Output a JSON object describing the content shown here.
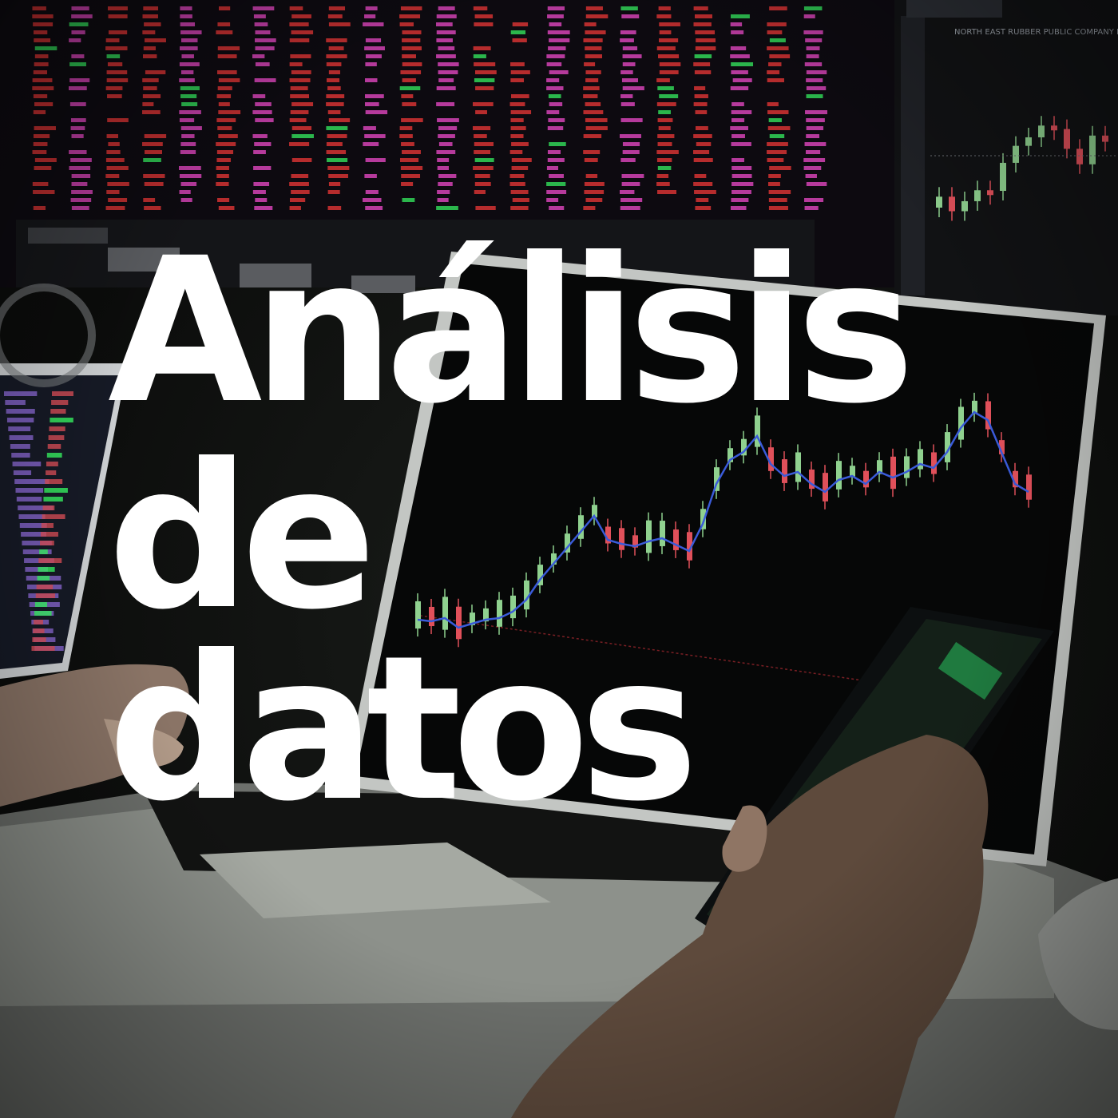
{
  "headline": {
    "line1": "Análisis",
    "line2": "de",
    "line3": "datos"
  },
  "background": {
    "screen_caption": "NORTH EAST RUBBER PUBLIC COMPANY LIMITED",
    "colors": {
      "up_candle": "#8fd18f",
      "down_candle": "#e0505a",
      "moving_average": "#3a5bd9",
      "ticker_red": "#ff3b3b",
      "ticker_magenta": "#ff4fd8",
      "ticker_green": "#39ff66",
      "title_text": "#ffffff"
    }
  }
}
